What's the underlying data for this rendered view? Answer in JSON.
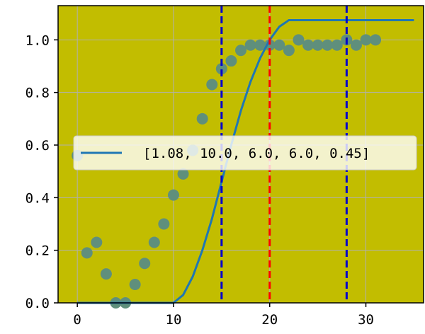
{
  "chart_data": {
    "type": "scatter",
    "background_color": "#c2bd00",
    "grid": true,
    "xlim": [
      -2,
      36
    ],
    "ylim": [
      0,
      1.13
    ],
    "x_ticks": [
      0,
      10,
      20,
      30
    ],
    "x_tick_labels": [
      "0",
      "10",
      "20",
      "30"
    ],
    "y_ticks": [
      0.0,
      0.2,
      0.4,
      0.6,
      0.8,
      1.0
    ],
    "y_tick_labels": [
      "0.0",
      "0.2",
      "0.4",
      "0.6",
      "0.8",
      "1.0"
    ],
    "scatter": {
      "color": "#5f8f7c",
      "points": [
        [
          0,
          0.56
        ],
        [
          1,
          0.19
        ],
        [
          2,
          0.23
        ],
        [
          3,
          0.11
        ],
        [
          4,
          0.0
        ],
        [
          5,
          0.0
        ],
        [
          6,
          0.07
        ],
        [
          7,
          0.15
        ],
        [
          8,
          0.23
        ],
        [
          9,
          0.3
        ],
        [
          10,
          0.41
        ],
        [
          11,
          0.49
        ],
        [
          12,
          0.58
        ],
        [
          13,
          0.7
        ],
        [
          14,
          0.83
        ],
        [
          15,
          0.89
        ],
        [
          16,
          0.92
        ],
        [
          17,
          0.96
        ],
        [
          18,
          0.98
        ],
        [
          19,
          0.98
        ],
        [
          20,
          0.98
        ],
        [
          21,
          0.98
        ],
        [
          22,
          0.96
        ],
        [
          23,
          1.0
        ],
        [
          24,
          0.98
        ],
        [
          25,
          0.98
        ],
        [
          26,
          0.98
        ],
        [
          27,
          0.98
        ],
        [
          28,
          1.0
        ],
        [
          29,
          0.98
        ],
        [
          30,
          1.0
        ],
        [
          31,
          1.0
        ]
      ]
    },
    "line": {
      "color": "#1f77b4",
      "x": [
        0,
        1,
        2,
        3,
        4,
        5,
        6,
        7,
        8,
        9,
        10,
        11,
        12,
        13,
        14,
        15,
        16,
        17,
        18,
        19,
        20,
        21,
        22,
        23,
        24,
        25,
        26,
        27,
        28,
        29,
        30,
        31,
        32,
        33,
        34,
        35
      ],
      "y": [
        0,
        0,
        0,
        0,
        0,
        0,
        0,
        0,
        0,
        0,
        0,
        0.03,
        0.1,
        0.2,
        0.32,
        0.46,
        0.6,
        0.73,
        0.84,
        0.93,
        1.0,
        1.05,
        1.075,
        1.075,
        1.075,
        1.075,
        1.075,
        1.075,
        1.075,
        1.075,
        1.075,
        1.075,
        1.075,
        1.075,
        1.075,
        1.075
      ]
    },
    "vlines": [
      {
        "x": 15,
        "color": "#0000cc"
      },
      {
        "x": 20,
        "color": "#ff0000"
      },
      {
        "x": 28,
        "color": "#0000cc"
      }
    ],
    "legend": {
      "label": "[1.08, 10.0, 6.0, 6.0, 0.45]",
      "position": "center-left"
    }
  }
}
